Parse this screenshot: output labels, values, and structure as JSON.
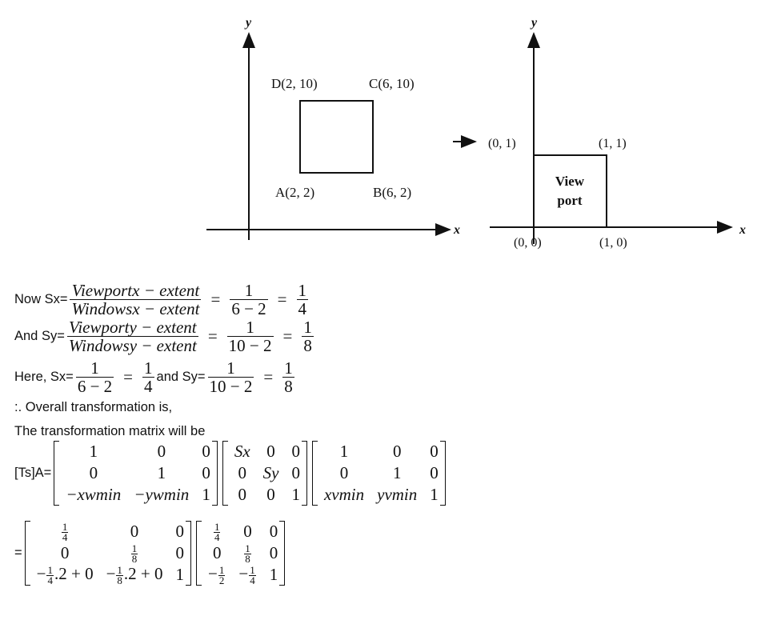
{
  "figure": {
    "window": {
      "axis_x": "x",
      "axis_y": "y",
      "labels": {
        "D": "D(2, 10)",
        "C": "C(6, 10)",
        "A": "A(2, 2)",
        "B": "B(6, 2)"
      }
    },
    "viewport": {
      "axis_x": "x",
      "axis_y": "y",
      "labels": {
        "tl": "(0, 1)",
        "tr": "(1, 1)",
        "bl": "(0, 0)",
        "br": "(1, 0)"
      },
      "title_line1": "View",
      "title_line2": "port"
    }
  },
  "equations": [
    {
      "label": "Now Sx=",
      "terms": [
        {
          "num": "Viewportx − extent",
          "den": "Windowsx − extent",
          "italic": true
        },
        "=",
        {
          "num": "1",
          "den": "6 − 2"
        },
        "=",
        {
          "num": "1",
          "den": "4"
        }
      ]
    },
    {
      "label": "And Sy=",
      "terms": [
        {
          "num": "Viewporty − extent",
          "den": "Windowsy − extent",
          "italic": true
        },
        "=",
        {
          "num": "1",
          "den": "10 − 2"
        },
        "=",
        {
          "num": "1",
          "den": "8"
        }
      ]
    },
    {
      "label": "Here, Sx=",
      "terms": [
        {
          "num": "1",
          "den": "6 − 2"
        },
        "=",
        {
          "num": "1",
          "den": "4"
        },
        {
          "text": "and Sy="
        },
        {
          "num": "1",
          "den": "10 − 2"
        },
        "=",
        {
          "num": "1",
          "den": "8"
        }
      ]
    }
  ],
  "text": {
    "overall": ":. Overall transformation is,",
    "matrix_intro": "The transformation matrix will be"
  },
  "matrix_eq1": {
    "label": "[Ts]A=",
    "matrices": [
      [
        [
          "1",
          "0",
          "0"
        ],
        [
          "0",
          "1",
          "0"
        ],
        [
          {
            "t": "−xwmin",
            "i": true
          },
          {
            "t": "−ywmin",
            "i": true
          },
          "1"
        ]
      ],
      [
        [
          {
            "t": "Sx",
            "i": true
          },
          "0",
          "0"
        ],
        [
          "0",
          {
            "t": "Sy",
            "i": true
          },
          "0"
        ],
        [
          "0",
          "0",
          "1"
        ]
      ],
      [
        [
          "1",
          "0",
          "0"
        ],
        [
          "0",
          "1",
          "0"
        ],
        [
          {
            "t": "xvmin",
            "i": true
          },
          {
            "t": "yvmin",
            "i": true
          },
          "1"
        ]
      ]
    ]
  },
  "matrix_eq2": {
    "label": "=",
    "matrices": [
      [
        [
          {
            "num": "1",
            "den": "4"
          },
          "0",
          "0"
        ],
        [
          "0",
          {
            "num": "1",
            "den": "8"
          },
          "0"
        ],
        [
          {
            "pre": "−",
            "num": "1",
            "den": "4",
            "post": ".2 + 0"
          },
          {
            "pre": "−",
            "num": "1",
            "den": "8",
            "post": ".2 + 0"
          },
          "1"
        ]
      ],
      [
        [
          {
            "num": "1",
            "den": "4"
          },
          "0",
          "0"
        ],
        [
          "0",
          {
            "num": "1",
            "den": "8"
          },
          "0"
        ],
        [
          {
            "pre": "−",
            "num": "1",
            "den": "2"
          },
          {
            "pre": "−",
            "num": "1",
            "den": "4"
          },
          "1"
        ]
      ]
    ]
  }
}
